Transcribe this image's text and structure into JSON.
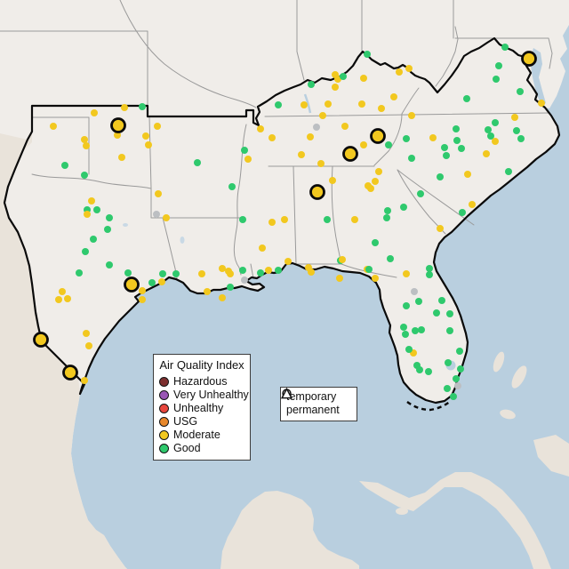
{
  "map": {
    "description": "Southeastern United States air quality monitoring stations map",
    "colors": {
      "water": "#b9cfdf",
      "land_us": "#f0ede9",
      "land_foreign": "#e9e3da",
      "state_border": "#9a9a9a",
      "region_border": "#0a0a0a"
    }
  },
  "aqi_legend": {
    "title": "Air Quality Index",
    "items": [
      {
        "key": "hazardous",
        "label": "Hazardous",
        "color": "#7d2f2f"
      },
      {
        "key": "very_unhealthy",
        "label": "Very Unhealthy",
        "color": "#9a57b5"
      },
      {
        "key": "unhealthy",
        "label": "Unhealthy",
        "color": "#e8463d"
      },
      {
        "key": "usg",
        "label": "USG",
        "color": "#e8882b"
      },
      {
        "key": "moderate",
        "label": "Moderate",
        "color": "#f2c81f"
      },
      {
        "key": "good",
        "label": "Good",
        "color": "#2fc96d"
      }
    ]
  },
  "shape_legend": {
    "items": [
      {
        "shape": "circle",
        "label": "temporary"
      },
      {
        "shape": "triangle",
        "label": "permanent"
      }
    ]
  },
  "stations": {
    "marker_colors": {
      "m": "#f2c81f",
      "g": "#2fc96d",
      "u": "#bcbfc2"
    },
    "small_radius": 4,
    "large_radius": 7.5,
    "temporary_large": [
      [
        133,
        141,
        "m"
      ],
      [
        148,
        320,
        "m"
      ],
      [
        46,
        382,
        "m"
      ],
      [
        79,
        419,
        "m"
      ],
      [
        595,
        66,
        "m"
      ],
      [
        425,
        153,
        "m"
      ],
      [
        394,
        173,
        "m"
      ],
      [
        357,
        216,
        "m"
      ]
    ],
    "points": [
      [
        106,
        127,
        "m"
      ],
      [
        140,
        121,
        "m"
      ],
      [
        160,
        120,
        "g"
      ],
      [
        60,
        142,
        "m"
      ],
      [
        95,
        157,
        "m"
      ],
      [
        97,
        164,
        "m"
      ],
      [
        132,
        152,
        "m"
      ],
      [
        177,
        142,
        "m"
      ],
      [
        164,
        153,
        "m"
      ],
      [
        167,
        163,
        "m"
      ],
      [
        137,
        177,
        "m"
      ],
      [
        73,
        186,
        "g"
      ],
      [
        95,
        197,
        "g"
      ],
      [
        222,
        183,
        "g"
      ],
      [
        275,
        169,
        "g"
      ],
      [
        279,
        179,
        "m"
      ],
      [
        293,
        145,
        "m"
      ],
      [
        306,
        155,
        "m"
      ],
      [
        261,
        210,
        "g"
      ],
      [
        273,
        247,
        "g"
      ],
      [
        178,
        218,
        "m"
      ],
      [
        176,
        241,
        "u"
      ],
      [
        187,
        245,
        "m"
      ],
      [
        103,
        226,
        "m"
      ],
      [
        98,
        236,
        "g"
      ],
      [
        109,
        236,
        "g"
      ],
      [
        98,
        241,
        "m"
      ],
      [
        123,
        245,
        "g"
      ],
      [
        121,
        258,
        "g"
      ],
      [
        105,
        269,
        "g"
      ],
      [
        96,
        283,
        "g"
      ],
      [
        123,
        298,
        "g"
      ],
      [
        89,
        307,
        "g"
      ],
      [
        70,
        328,
        "m"
      ],
      [
        66,
        337,
        "m"
      ],
      [
        76,
        336,
        "m"
      ],
      [
        144,
        307,
        "g"
      ],
      [
        160,
        327,
        "m"
      ],
      [
        160,
        337,
        "m"
      ],
      [
        171,
        318,
        "g"
      ],
      [
        182,
        317,
        "m"
      ],
      [
        183,
        308,
        "g"
      ],
      [
        198,
        308,
        "g"
      ],
      [
        227,
        308,
        "m"
      ],
      [
        97,
        375,
        "m"
      ],
      [
        100,
        389,
        "m"
      ],
      [
        95,
        428,
        "m"
      ],
      [
        250,
        302,
        "m"
      ],
      [
        257,
        305,
        "m"
      ],
      [
        259,
        308,
        "m"
      ],
      [
        273,
        304,
        "g"
      ],
      [
        275,
        315,
        "u"
      ],
      [
        259,
        323,
        "g"
      ],
      [
        293,
        307,
        "g"
      ],
      [
        302,
        304,
        "m"
      ],
      [
        313,
        304,
        "g"
      ],
      [
        324,
        294,
        "m"
      ],
      [
        347,
        301,
        "m"
      ],
      [
        350,
        306,
        "m"
      ],
      [
        233,
        328,
        "m"
      ],
      [
        250,
        335,
        "m"
      ],
      [
        295,
        279,
        "m"
      ],
      [
        306,
        250,
        "m"
      ],
      [
        320,
        247,
        "m"
      ],
      [
        368,
        247,
        "g"
      ],
      [
        399,
        247,
        "m"
      ],
      [
        350,
        95,
        "g"
      ],
      [
        342,
        118,
        "m"
      ],
      [
        356,
        143,
        "u"
      ],
      [
        363,
        130,
        "m"
      ],
      [
        369,
        117,
        "m"
      ],
      [
        377,
        84,
        "m"
      ],
      [
        380,
        89,
        "m"
      ],
      [
        386,
        86,
        "g"
      ],
      [
        409,
        88,
        "m"
      ],
      [
        413,
        61,
        "g"
      ],
      [
        449,
        81,
        "m"
      ],
      [
        460,
        77,
        "m"
      ],
      [
        377,
        98,
        "m"
      ],
      [
        407,
        117,
        "m"
      ],
      [
        443,
        109,
        "m"
      ],
      [
        429,
        122,
        "m"
      ],
      [
        463,
        130,
        "m"
      ],
      [
        388,
        142,
        "m"
      ],
      [
        349,
        154,
        "m"
      ],
      [
        313,
        118,
        "g"
      ],
      [
        409,
        163,
        "m"
      ],
      [
        437,
        163,
        "g"
      ],
      [
        339,
        174,
        "m"
      ],
      [
        361,
        184,
        "m"
      ],
      [
        374,
        203,
        "m"
      ],
      [
        457,
        156,
        "g"
      ],
      [
        487,
        155,
        "m"
      ],
      [
        568,
        53,
        "g"
      ],
      [
        561,
        74,
        "g"
      ],
      [
        558,
        89,
        "g"
      ],
      [
        585,
        103,
        "g"
      ],
      [
        609,
        116,
        "m"
      ],
      [
        525,
        111,
        "g"
      ],
      [
        579,
        132,
        "m"
      ],
      [
        557,
        138,
        "g"
      ],
      [
        549,
        146,
        "g"
      ],
      [
        552,
        153,
        "g"
      ],
      [
        557,
        159,
        "m"
      ],
      [
        581,
        147,
        "g"
      ],
      [
        586,
        156,
        "g"
      ],
      [
        513,
        145,
        "g"
      ],
      [
        514,
        158,
        "g"
      ],
      [
        500,
        166,
        "g"
      ],
      [
        519,
        167,
        "g"
      ],
      [
        502,
        175,
        "g"
      ],
      [
        463,
        178,
        "g"
      ],
      [
        547,
        173,
        "m"
      ],
      [
        572,
        193,
        "g"
      ],
      [
        526,
        196,
        "m"
      ],
      [
        495,
        199,
        "g"
      ],
      [
        473,
        218,
        "g"
      ],
      [
        531,
        230,
        "m"
      ],
      [
        520,
        239,
        "g"
      ],
      [
        495,
        257,
        "m"
      ],
      [
        454,
        233,
        "g"
      ],
      [
        436,
        237,
        "g"
      ],
      [
        435,
        245,
        "g"
      ],
      [
        426,
        193,
        "m"
      ],
      [
        422,
        204,
        "m"
      ],
      [
        417,
        212,
        "m"
      ],
      [
        414,
        209,
        "m"
      ],
      [
        383,
        293,
        "g"
      ],
      [
        439,
        291,
        "g"
      ],
      [
        422,
        273,
        "g"
      ],
      [
        413,
        303,
        "m"
      ],
      [
        483,
        302,
        "g"
      ],
      [
        483,
        309,
        "g"
      ],
      [
        457,
        308,
        "m"
      ],
      [
        415,
        303,
        "g"
      ],
      [
        422,
        313,
        "m"
      ],
      [
        382,
        313,
        "m"
      ],
      [
        385,
        292,
        "m"
      ],
      [
        466,
        328,
        "u"
      ],
      [
        471,
        339,
        "g"
      ],
      [
        497,
        338,
        "g"
      ],
      [
        457,
        344,
        "g"
      ],
      [
        491,
        352,
        "g"
      ],
      [
        506,
        353,
        "g"
      ],
      [
        454,
        368,
        "g"
      ],
      [
        456,
        376,
        "g"
      ],
      [
        467,
        372,
        "g"
      ],
      [
        474,
        371,
        "g"
      ],
      [
        506,
        372,
        "g"
      ],
      [
        517,
        395,
        "g"
      ],
      [
        465,
        397,
        "m"
      ],
      [
        460,
        393,
        "g"
      ],
      [
        469,
        411,
        "g"
      ],
      [
        472,
        416,
        "g"
      ],
      [
        482,
        418,
        "g"
      ],
      [
        504,
        408,
        "g"
      ],
      [
        518,
        415,
        "g"
      ],
      [
        513,
        426,
        "g"
      ],
      [
        503,
        437,
        "g"
      ],
      [
        515,
        434,
        "u"
      ],
      [
        510,
        446,
        "g"
      ]
    ]
  }
}
